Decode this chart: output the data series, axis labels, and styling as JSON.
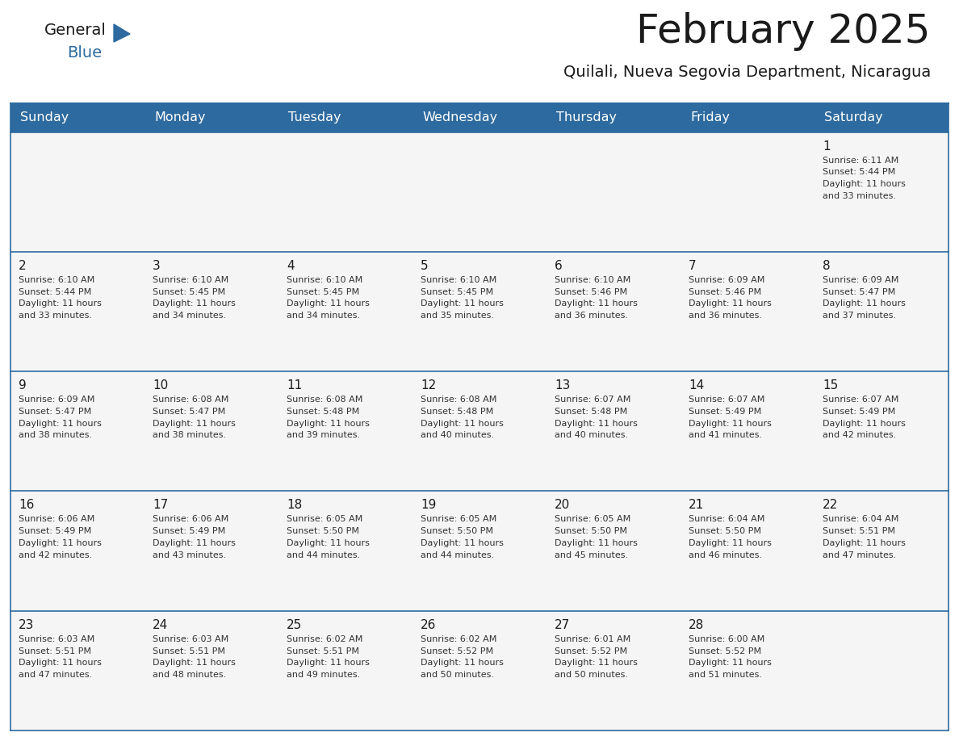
{
  "title": "February 2025",
  "subtitle": "Quilali, Nueva Segovia Department, Nicaragua",
  "header_bg_color": "#2D6A9F",
  "header_text_color": "#FFFFFF",
  "cell_bg_color": "#FFFFFF",
  "row_sep_color": "#2D6A9F",
  "border_color": "#2D6A9F",
  "day_names": [
    "Sunday",
    "Monday",
    "Tuesday",
    "Wednesday",
    "Thursday",
    "Friday",
    "Saturday"
  ],
  "title_color": "#1a1a1a",
  "subtitle_color": "#1a1a1a",
  "day_num_color": "#1a1a1a",
  "cell_text_color": "#333333",
  "days": [
    {
      "day": 1,
      "col": 6,
      "row": 0,
      "sunrise": "6:11 AM",
      "sunset": "5:44 PM",
      "daylight": "11 hours and 33 minutes."
    },
    {
      "day": 2,
      "col": 0,
      "row": 1,
      "sunrise": "6:10 AM",
      "sunset": "5:44 PM",
      "daylight": "11 hours and 33 minutes."
    },
    {
      "day": 3,
      "col": 1,
      "row": 1,
      "sunrise": "6:10 AM",
      "sunset": "5:45 PM",
      "daylight": "11 hours and 34 minutes."
    },
    {
      "day": 4,
      "col": 2,
      "row": 1,
      "sunrise": "6:10 AM",
      "sunset": "5:45 PM",
      "daylight": "11 hours and 34 minutes."
    },
    {
      "day": 5,
      "col": 3,
      "row": 1,
      "sunrise": "6:10 AM",
      "sunset": "5:45 PM",
      "daylight": "11 hours and 35 minutes."
    },
    {
      "day": 6,
      "col": 4,
      "row": 1,
      "sunrise": "6:10 AM",
      "sunset": "5:46 PM",
      "daylight": "11 hours and 36 minutes."
    },
    {
      "day": 7,
      "col": 5,
      "row": 1,
      "sunrise": "6:09 AM",
      "sunset": "5:46 PM",
      "daylight": "11 hours and 36 minutes."
    },
    {
      "day": 8,
      "col": 6,
      "row": 1,
      "sunrise": "6:09 AM",
      "sunset": "5:47 PM",
      "daylight": "11 hours and 37 minutes."
    },
    {
      "day": 9,
      "col": 0,
      "row": 2,
      "sunrise": "6:09 AM",
      "sunset": "5:47 PM",
      "daylight": "11 hours and 38 minutes."
    },
    {
      "day": 10,
      "col": 1,
      "row": 2,
      "sunrise": "6:08 AM",
      "sunset": "5:47 PM",
      "daylight": "11 hours and 38 minutes."
    },
    {
      "day": 11,
      "col": 2,
      "row": 2,
      "sunrise": "6:08 AM",
      "sunset": "5:48 PM",
      "daylight": "11 hours and 39 minutes."
    },
    {
      "day": 12,
      "col": 3,
      "row": 2,
      "sunrise": "6:08 AM",
      "sunset": "5:48 PM",
      "daylight": "11 hours and 40 minutes."
    },
    {
      "day": 13,
      "col": 4,
      "row": 2,
      "sunrise": "6:07 AM",
      "sunset": "5:48 PM",
      "daylight": "11 hours and 40 minutes."
    },
    {
      "day": 14,
      "col": 5,
      "row": 2,
      "sunrise": "6:07 AM",
      "sunset": "5:49 PM",
      "daylight": "11 hours and 41 minutes."
    },
    {
      "day": 15,
      "col": 6,
      "row": 2,
      "sunrise": "6:07 AM",
      "sunset": "5:49 PM",
      "daylight": "11 hours and 42 minutes."
    },
    {
      "day": 16,
      "col": 0,
      "row": 3,
      "sunrise": "6:06 AM",
      "sunset": "5:49 PM",
      "daylight": "11 hours and 42 minutes."
    },
    {
      "day": 17,
      "col": 1,
      "row": 3,
      "sunrise": "6:06 AM",
      "sunset": "5:49 PM",
      "daylight": "11 hours and 43 minutes."
    },
    {
      "day": 18,
      "col": 2,
      "row": 3,
      "sunrise": "6:05 AM",
      "sunset": "5:50 PM",
      "daylight": "11 hours and 44 minutes."
    },
    {
      "day": 19,
      "col": 3,
      "row": 3,
      "sunrise": "6:05 AM",
      "sunset": "5:50 PM",
      "daylight": "11 hours and 44 minutes."
    },
    {
      "day": 20,
      "col": 4,
      "row": 3,
      "sunrise": "6:05 AM",
      "sunset": "5:50 PM",
      "daylight": "11 hours and 45 minutes."
    },
    {
      "day": 21,
      "col": 5,
      "row": 3,
      "sunrise": "6:04 AM",
      "sunset": "5:50 PM",
      "daylight": "11 hours and 46 minutes."
    },
    {
      "day": 22,
      "col": 6,
      "row": 3,
      "sunrise": "6:04 AM",
      "sunset": "5:51 PM",
      "daylight": "11 hours and 47 minutes."
    },
    {
      "day": 23,
      "col": 0,
      "row": 4,
      "sunrise": "6:03 AM",
      "sunset": "5:51 PM",
      "daylight": "11 hours and 47 minutes."
    },
    {
      "day": 24,
      "col": 1,
      "row": 4,
      "sunrise": "6:03 AM",
      "sunset": "5:51 PM",
      "daylight": "11 hours and 48 minutes."
    },
    {
      "day": 25,
      "col": 2,
      "row": 4,
      "sunrise": "6:02 AM",
      "sunset": "5:51 PM",
      "daylight": "11 hours and 49 minutes."
    },
    {
      "day": 26,
      "col": 3,
      "row": 4,
      "sunrise": "6:02 AM",
      "sunset": "5:52 PM",
      "daylight": "11 hours and 50 minutes."
    },
    {
      "day": 27,
      "col": 4,
      "row": 4,
      "sunrise": "6:01 AM",
      "sunset": "5:52 PM",
      "daylight": "11 hours and 50 minutes."
    },
    {
      "day": 28,
      "col": 5,
      "row": 4,
      "sunrise": "6:00 AM",
      "sunset": "5:52 PM",
      "daylight": "11 hours and 51 minutes."
    }
  ],
  "num_rows": 5,
  "logo_text_general": "General",
  "logo_text_blue": "Blue",
  "logo_triangle_color": "#2D6A9F",
  "logo_general_color": "#1a1a1a"
}
